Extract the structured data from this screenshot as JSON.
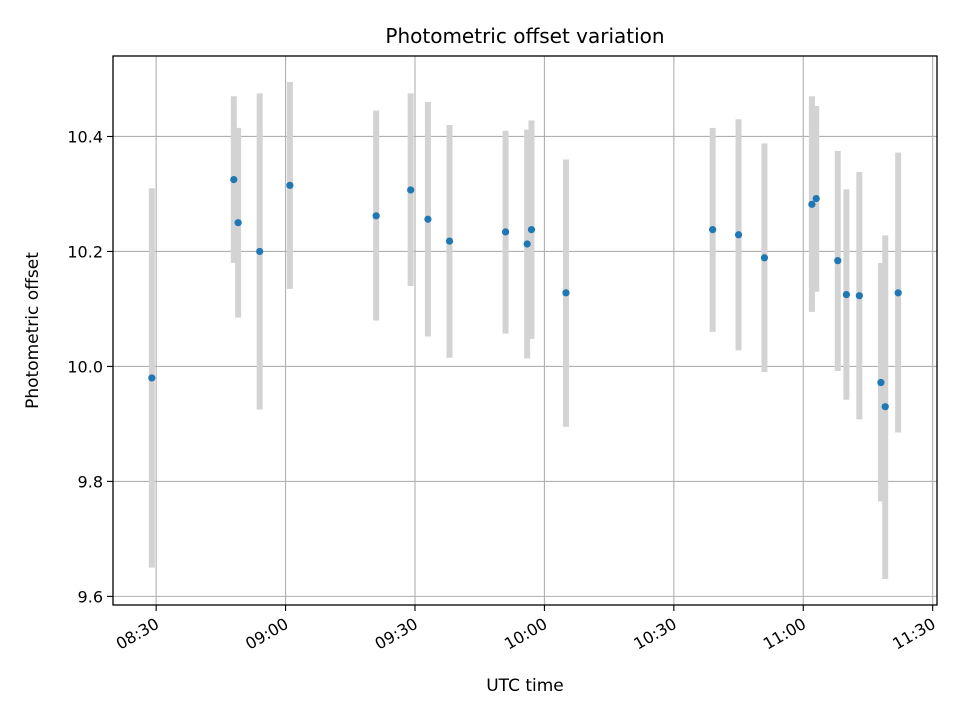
{
  "chart_data": {
    "type": "scatter",
    "title": "Photometric offset variation",
    "xlabel": "UTC time",
    "ylabel": "Photometric offset",
    "x_unit": "time",
    "xlim": [
      "08:20",
      "11:31"
    ],
    "ylim": [
      9.585,
      10.54
    ],
    "x_ticks": [
      "08:30",
      "09:00",
      "09:30",
      "10:00",
      "10:30",
      "11:00",
      "11:30"
    ],
    "y_ticks": [
      9.6,
      9.8,
      10.0,
      10.2,
      10.4
    ],
    "y_tick_labels": [
      "9.6",
      "9.8",
      "10.0",
      "10.2",
      "10.4"
    ],
    "grid": true,
    "colors": {
      "marker": "#1f77b4",
      "errorbar": "#d3d3d3",
      "grid": "#b0b0b0"
    },
    "series": [
      {
        "points": [
          {
            "x": "08:29",
            "y": 9.98,
            "lo": 9.65,
            "hi": 10.31
          },
          {
            "x": "08:48",
            "y": 10.325,
            "lo": 10.18,
            "hi": 10.47
          },
          {
            "x": "08:49",
            "y": 10.25,
            "lo": 10.085,
            "hi": 10.415
          },
          {
            "x": "08:54",
            "y": 10.2,
            "lo": 9.925,
            "hi": 10.475
          },
          {
            "x": "09:01",
            "y": 10.315,
            "lo": 10.135,
            "hi": 10.495
          },
          {
            "x": "09:21",
            "y": 10.262,
            "lo": 10.08,
            "hi": 10.445
          },
          {
            "x": "09:29",
            "y": 10.307,
            "lo": 10.14,
            "hi": 10.475
          },
          {
            "x": "09:33",
            "y": 10.256,
            "lo": 10.052,
            "hi": 10.46
          },
          {
            "x": "09:38",
            "y": 10.218,
            "lo": 10.015,
            "hi": 10.42
          },
          {
            "x": "09:51",
            "y": 10.234,
            "lo": 10.057,
            "hi": 10.41
          },
          {
            "x": "09:56",
            "y": 10.213,
            "lo": 10.014,
            "hi": 10.412
          },
          {
            "x": "09:57",
            "y": 10.238,
            "lo": 10.048,
            "hi": 10.428
          },
          {
            "x": "10:05",
            "y": 10.128,
            "lo": 9.895,
            "hi": 10.36
          },
          {
            "x": "10:39",
            "y": 10.238,
            "lo": 10.06,
            "hi": 10.415
          },
          {
            "x": "10:45",
            "y": 10.229,
            "lo": 10.028,
            "hi": 10.43
          },
          {
            "x": "10:51",
            "y": 10.189,
            "lo": 9.99,
            "hi": 10.388
          },
          {
            "x": "11:02",
            "y": 10.282,
            "lo": 10.095,
            "hi": 10.47
          },
          {
            "x": "11:03",
            "y": 10.292,
            "lo": 10.13,
            "hi": 10.453
          },
          {
            "x": "11:08",
            "y": 10.184,
            "lo": 9.992,
            "hi": 10.375
          },
          {
            "x": "11:10",
            "y": 10.125,
            "lo": 9.942,
            "hi": 10.308
          },
          {
            "x": "11:13",
            "y": 10.123,
            "lo": 9.908,
            "hi": 10.338
          },
          {
            "x": "11:18",
            "y": 9.972,
            "lo": 9.765,
            "hi": 10.18
          },
          {
            "x": "11:19",
            "y": 9.93,
            "lo": 9.63,
            "hi": 10.228
          },
          {
            "x": "11:22",
            "y": 10.128,
            "lo": 9.885,
            "hi": 10.372
          }
        ]
      }
    ]
  }
}
